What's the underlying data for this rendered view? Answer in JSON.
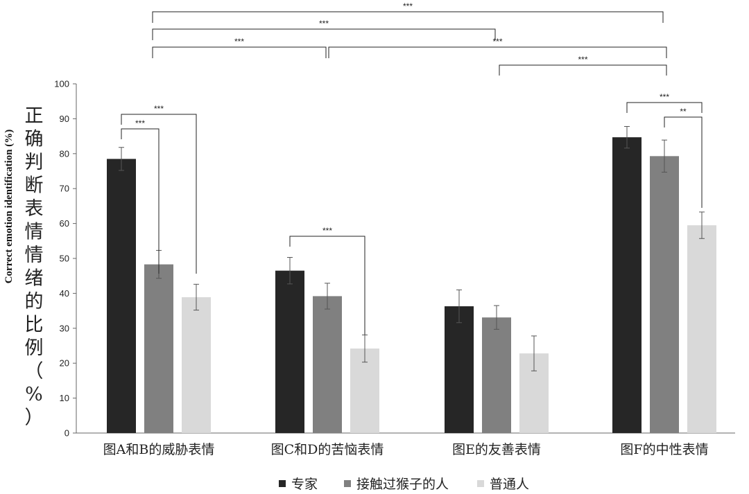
{
  "chart_data": {
    "type": "bar",
    "categories": [
      "图A和B的威胁表情",
      "图C和D的苦恼表情",
      "图E的友善表情",
      "图F的中性表情"
    ],
    "series": [
      {
        "name": "专家",
        "color": "#262626",
        "values": [
          78.5,
          46.5,
          36.3,
          84.7
        ],
        "errors": [
          3.3,
          3.8,
          4.7,
          3.1
        ]
      },
      {
        "name": "接触过猴子的人",
        "color": "#808080",
        "values": [
          48.3,
          39.2,
          33.1,
          79.3
        ],
        "errors": [
          4.0,
          3.7,
          3.4,
          4.6
        ]
      },
      {
        "name": "普通人",
        "color": "#d9d9d9",
        "values": [
          38.9,
          24.2,
          22.8,
          59.5
        ],
        "errors": [
          3.7,
          3.9,
          5.0,
          3.8
        ]
      }
    ],
    "ylabel_cn": "正确判断表情情绪的比例（%）",
    "ylabel_en": "Correct emotion identification (%)",
    "ylim": [
      0,
      100
    ],
    "yticks": [
      0,
      10,
      20,
      30,
      40,
      50,
      60,
      70,
      80,
      90,
      100
    ],
    "legend_position": "bottom",
    "significance": [
      {
        "label": "***",
        "from": {
          "cat": 0,
          "series": 0
        },
        "to": {
          "cat": 0,
          "series": 1
        }
      },
      {
        "label": "***",
        "from": {
          "cat": 0,
          "series": 0
        },
        "to": {
          "cat": 0,
          "series": 2
        }
      },
      {
        "label": "***",
        "from": {
          "cat": 1,
          "series": 0
        },
        "to": {
          "cat": 1,
          "series": 2
        }
      },
      {
        "label": "***",
        "from": {
          "cat": 3,
          "series": 0
        },
        "to": {
          "cat": 3,
          "series": 2
        }
      },
      {
        "label": "**",
        "from": {
          "cat": 3,
          "series": 1
        },
        "to": {
          "cat": 3,
          "series": 2
        }
      },
      {
        "label": "***",
        "from": {
          "cat": 0
        },
        "to": {
          "cat": 1
        }
      },
      {
        "label": "***",
        "from": {
          "cat": 1
        },
        "to": {
          "cat": 3
        }
      },
      {
        "label": "***",
        "from": {
          "cat": 2
        },
        "to": {
          "cat": 3
        }
      },
      {
        "label": "***",
        "from": {
          "cat": 0
        },
        "to": {
          "cat": 2
        }
      },
      {
        "label": "***",
        "from": {
          "cat": 0
        },
        "to": {
          "cat": 3
        }
      }
    ]
  }
}
